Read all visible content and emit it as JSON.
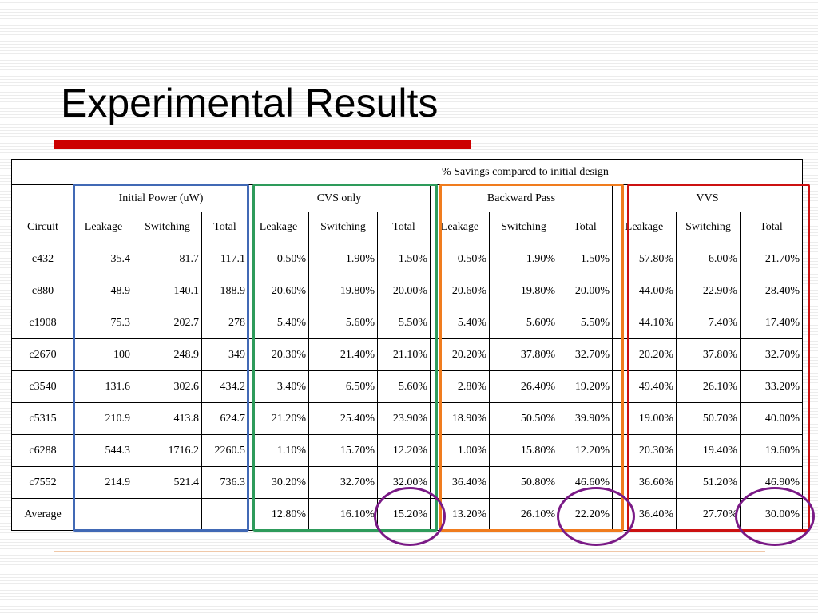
{
  "slide": {
    "title": "Experimental Results",
    "accent_color": "#cc0000"
  },
  "table": {
    "group_header": "% Savings compared to initial design",
    "sections": [
      "Initial Power (uW)",
      "CVS only",
      "Backward Pass",
      "VVS"
    ],
    "columns": [
      "Circuit",
      "Leakage",
      "Switching",
      "Total",
      "Leakage",
      "Switching",
      "Total",
      "Leakage",
      "Switching",
      "Total",
      "Leakage",
      "Switching",
      "Total"
    ],
    "rows": [
      [
        "c432",
        "35.4",
        "81.7",
        "117.1",
        "0.50%",
        "1.90%",
        "1.50%",
        "0.50%",
        "1.90%",
        "1.50%",
        "57.80%",
        "6.00%",
        "21.70%"
      ],
      [
        "c880",
        "48.9",
        "140.1",
        "188.9",
        "20.60%",
        "19.80%",
        "20.00%",
        "20.60%",
        "19.80%",
        "20.00%",
        "44.00%",
        "22.90%",
        "28.40%"
      ],
      [
        "c1908",
        "75.3",
        "202.7",
        "278",
        "5.40%",
        "5.60%",
        "5.50%",
        "5.40%",
        "5.60%",
        "5.50%",
        "44.10%",
        "7.40%",
        "17.40%"
      ],
      [
        "c2670",
        "100",
        "248.9",
        "349",
        "20.30%",
        "21.40%",
        "21.10%",
        "20.20%",
        "37.80%",
        "32.70%",
        "20.20%",
        "37.80%",
        "32.70%"
      ],
      [
        "c3540",
        "131.6",
        "302.6",
        "434.2",
        "3.40%",
        "6.50%",
        "5.60%",
        "2.80%",
        "26.40%",
        "19.20%",
        "49.40%",
        "26.10%",
        "33.20%"
      ],
      [
        "c5315",
        "210.9",
        "413.8",
        "624.7",
        "21.20%",
        "25.40%",
        "23.90%",
        "18.90%",
        "50.50%",
        "39.90%",
        "19.00%",
        "50.70%",
        "40.00%"
      ],
      [
        "c6288",
        "544.3",
        "1716.2",
        "2260.5",
        "1.10%",
        "15.70%",
        "12.20%",
        "1.00%",
        "15.80%",
        "12.20%",
        "20.30%",
        "19.40%",
        "19.60%"
      ],
      [
        "c7552",
        "214.9",
        "521.4",
        "736.3",
        "30.20%",
        "32.70%",
        "32.00%",
        "36.40%",
        "50.80%",
        "46.60%",
        "36.60%",
        "51.20%",
        "46.90%"
      ],
      [
        "Average",
        "",
        "",
        "",
        "12.80%",
        "16.10%",
        "15.20%",
        "13.20%",
        "26.10%",
        "22.20%",
        "36.40%",
        "27.70%",
        "30.00%"
      ]
    ]
  },
  "highlight_colors": {
    "initial_power_frame": "#4169b5",
    "cvs_frame": "#2e9b5b",
    "backward_pass_frame": "#f07c1e",
    "vvs_frame": "#cc1111",
    "average_circles": "#7a1a86"
  }
}
